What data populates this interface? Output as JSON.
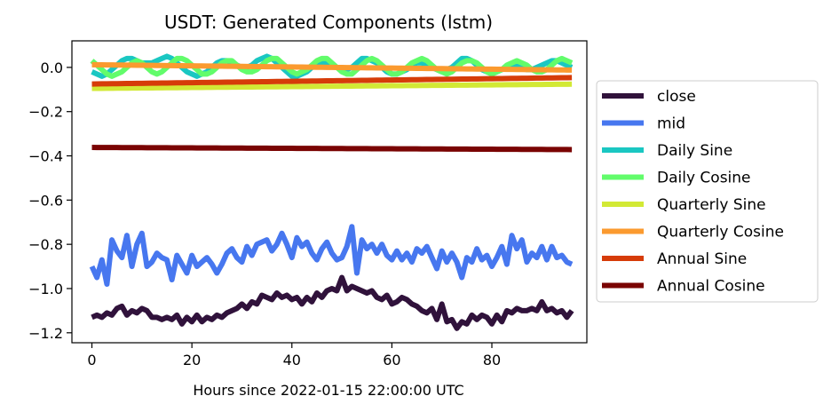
{
  "chart_data": {
    "type": "line",
    "title": "USDT: Generated Components (lstm)",
    "xlabel": "Hours since 2022-01-15 22:00:00 UTC",
    "ylabel": "",
    "xlim": [
      -4,
      99
    ],
    "ylim": [
      -1.245,
      0.12
    ],
    "xticks": [
      0,
      20,
      40,
      60,
      80
    ],
    "yticks": [
      0.0,
      -0.2,
      -0.4,
      -0.6,
      -0.8,
      -1.0,
      -1.2
    ],
    "ytick_labels": [
      "0.0",
      "−0.2",
      "−0.4",
      "−0.6",
      "−0.8",
      "−1.0",
      "−1.2"
    ],
    "grid": false,
    "legend_position": "right",
    "series": [
      {
        "name": "close",
        "color": "#30123b",
        "values": [
          -1.13,
          -1.12,
          -1.13,
          -1.11,
          -1.12,
          -1.09,
          -1.08,
          -1.12,
          -1.1,
          -1.11,
          -1.09,
          -1.1,
          -1.13,
          -1.13,
          -1.14,
          -1.13,
          -1.14,
          -1.12,
          -1.16,
          -1.13,
          -1.15,
          -1.12,
          -1.15,
          -1.13,
          -1.14,
          -1.12,
          -1.13,
          -1.11,
          -1.1,
          -1.09,
          -1.07,
          -1.09,
          -1.06,
          -1.07,
          -1.03,
          -1.04,
          -1.05,
          -1.02,
          -1.04,
          -1.03,
          -1.05,
          -1.04,
          -1.07,
          -1.04,
          -1.06,
          -1.02,
          -1.04,
          -1.01,
          -1.0,
          -1.01,
          -0.95,
          -1.01,
          -0.99,
          -1.0,
          -1.01,
          -1.02,
          -1.01,
          -1.04,
          -1.05,
          -1.03,
          -1.07,
          -1.06,
          -1.04,
          -1.05,
          -1.07,
          -1.08,
          -1.1,
          -1.11,
          -1.09,
          -1.14,
          -1.07,
          -1.15,
          -1.14,
          -1.18,
          -1.15,
          -1.16,
          -1.12,
          -1.14,
          -1.12,
          -1.13,
          -1.16,
          -1.12,
          -1.15,
          -1.1,
          -1.11,
          -1.09,
          -1.1,
          -1.1,
          -1.09,
          -1.1,
          -1.06,
          -1.1,
          -1.09,
          -1.11,
          -1.1,
          -1.13,
          -1.1
        ]
      },
      {
        "name": "mid",
        "color": "#4777ef",
        "values": [
          -0.9,
          -0.95,
          -0.87,
          -0.98,
          -0.78,
          -0.83,
          -0.86,
          -0.76,
          -0.9,
          -0.8,
          -0.75,
          -0.9,
          -0.88,
          -0.84,
          -0.86,
          -0.87,
          -0.96,
          -0.85,
          -0.89,
          -0.93,
          -0.85,
          -0.9,
          -0.88,
          -0.86,
          -0.89,
          -0.93,
          -0.89,
          -0.84,
          -0.82,
          -0.86,
          -0.88,
          -0.81,
          -0.85,
          -0.8,
          -0.79,
          -0.78,
          -0.83,
          -0.8,
          -0.75,
          -0.8,
          -0.86,
          -0.77,
          -0.81,
          -0.79,
          -0.84,
          -0.87,
          -0.82,
          -0.79,
          -0.84,
          -0.87,
          -0.86,
          -0.81,
          -0.72,
          -0.93,
          -0.78,
          -0.82,
          -0.8,
          -0.84,
          -0.8,
          -0.85,
          -0.87,
          -0.83,
          -0.87,
          -0.84,
          -0.88,
          -0.82,
          -0.84,
          -0.81,
          -0.86,
          -0.91,
          -0.83,
          -0.88,
          -0.84,
          -0.88,
          -0.95,
          -0.86,
          -0.88,
          -0.82,
          -0.87,
          -0.85,
          -0.9,
          -0.86,
          -0.81,
          -0.89,
          -0.76,
          -0.82,
          -0.78,
          -0.88,
          -0.84,
          -0.86,
          -0.81,
          -0.87,
          -0.81,
          -0.86,
          -0.85,
          -0.88,
          -0.89
        ]
      },
      {
        "name": "Daily Sine",
        "color": "#1ac7c2",
        "values": [
          -0.02,
          -0.03,
          -0.04,
          -0.03,
          -0.01,
          0.01,
          0.03,
          0.04,
          0.04,
          0.03,
          0.02,
          0.02,
          0.02,
          0.03,
          0.04,
          0.05,
          0.04,
          0.02,
          0.0,
          -0.02,
          -0.03,
          -0.04,
          -0.03,
          -0.02,
          0.0,
          0.02,
          0.03,
          0.03,
          0.02,
          0.01,
          0.0,
          0.0,
          0.01,
          0.03,
          0.04,
          0.05,
          0.04,
          0.02,
          0.0,
          -0.02,
          -0.04,
          -0.04,
          -0.03,
          -0.02,
          0.0,
          0.02,
          0.02,
          0.02,
          0.01,
          0.0,
          -0.01,
          -0.01,
          0.0,
          0.02,
          0.04,
          0.04,
          0.03,
          0.02,
          0.0,
          -0.02,
          -0.03,
          -0.03,
          -0.02,
          -0.01,
          0.01,
          0.02,
          0.02,
          0.01,
          0.0,
          -0.01,
          -0.02,
          -0.01,
          0.0,
          0.02,
          0.04,
          0.04,
          0.03,
          0.01,
          -0.01,
          -0.02,
          -0.03,
          -0.02,
          -0.01,
          0.0,
          0.01,
          0.01,
          0.0,
          -0.01,
          -0.01,
          0.0,
          0.01,
          0.02,
          0.03,
          0.03,
          0.02,
          0.01,
          0.0
        ]
      },
      {
        "name": "Daily Cosine",
        "color": "#62fc6b",
        "values": [
          0.03,
          0.01,
          -0.01,
          -0.03,
          -0.04,
          -0.03,
          -0.02,
          0.0,
          0.02,
          0.03,
          0.02,
          0.0,
          -0.02,
          -0.03,
          -0.02,
          0.0,
          0.02,
          0.04,
          0.04,
          0.03,
          0.01,
          -0.01,
          -0.03,
          -0.03,
          -0.02,
          0.0,
          0.02,
          0.03,
          0.03,
          0.01,
          -0.01,
          -0.02,
          -0.02,
          -0.01,
          0.01,
          0.03,
          0.04,
          0.04,
          0.02,
          0.0,
          -0.02,
          -0.03,
          -0.02,
          -0.01,
          0.01,
          0.03,
          0.04,
          0.04,
          0.02,
          0.0,
          -0.02,
          -0.03,
          -0.03,
          -0.01,
          0.01,
          0.03,
          0.04,
          0.03,
          0.01,
          -0.01,
          -0.03,
          -0.03,
          -0.02,
          0.0,
          0.02,
          0.03,
          0.04,
          0.03,
          0.01,
          -0.01,
          -0.02,
          -0.03,
          -0.02,
          0.0,
          0.02,
          0.03,
          0.03,
          0.02,
          0.0,
          -0.02,
          -0.03,
          -0.02,
          -0.01,
          0.01,
          0.02,
          0.03,
          0.02,
          0.01,
          -0.01,
          -0.02,
          -0.02,
          -0.01,
          0.01,
          0.03,
          0.04,
          0.03,
          0.02
        ]
      },
      {
        "name": "Quarterly Sine",
        "color": "#d2e935",
        "values": [
          -0.095,
          -0.0948,
          -0.0946,
          -0.0944,
          -0.0942,
          -0.094,
          -0.0938,
          -0.0936,
          -0.0934,
          -0.0932,
          -0.093,
          -0.0928,
          -0.0926,
          -0.0924,
          -0.0922,
          -0.092,
          -0.0918,
          -0.0916,
          -0.0914,
          -0.0912,
          -0.091,
          -0.0908,
          -0.0906,
          -0.0904,
          -0.0902,
          -0.09,
          -0.0898,
          -0.0896,
          -0.0894,
          -0.0892,
          -0.089,
          -0.0888,
          -0.0886,
          -0.0884,
          -0.0882,
          -0.088,
          -0.0878,
          -0.0876,
          -0.0874,
          -0.0872,
          -0.087,
          -0.0868,
          -0.0866,
          -0.0864,
          -0.0862,
          -0.086,
          -0.0858,
          -0.0856,
          -0.0854,
          -0.0852,
          -0.085,
          -0.0848,
          -0.0846,
          -0.0844,
          -0.0842,
          -0.084,
          -0.0838,
          -0.0836,
          -0.0834,
          -0.0832,
          -0.083,
          -0.0828,
          -0.0826,
          -0.0824,
          -0.0822,
          -0.082,
          -0.0818,
          -0.0816,
          -0.0814,
          -0.0812,
          -0.081,
          -0.0808,
          -0.0806,
          -0.0804,
          -0.0802,
          -0.08,
          -0.0798,
          -0.0796,
          -0.0794,
          -0.0792,
          -0.079,
          -0.0788,
          -0.0786,
          -0.0784,
          -0.0782,
          -0.078,
          -0.0778,
          -0.0776,
          -0.0774,
          -0.0772,
          -0.077,
          -0.0768,
          -0.0766,
          -0.0764,
          -0.0762,
          -0.076,
          -0.0758
        ]
      },
      {
        "name": "Quarterly Cosine",
        "color": "#fb9a2f",
        "values": [
          0.012,
          0.0118,
          0.0115,
          0.0113,
          0.011,
          0.0108,
          0.0105,
          0.0103,
          0.01,
          0.0098,
          0.0095,
          0.0093,
          0.009,
          0.0088,
          0.0085,
          0.0083,
          0.008,
          0.0078,
          0.0075,
          0.0073,
          0.007,
          0.0068,
          0.0065,
          0.0063,
          0.006,
          0.0058,
          0.0055,
          0.0053,
          0.005,
          0.0048,
          0.0045,
          0.0043,
          0.004,
          0.0038,
          0.0035,
          0.0033,
          0.003,
          0.0028,
          0.0025,
          0.0023,
          0.002,
          0.0018,
          0.0015,
          0.0013,
          0.001,
          0.0008,
          0.0005,
          0.0003,
          0.0,
          -0.0003,
          -0.0005,
          -0.0008,
          -0.001,
          -0.0013,
          -0.0015,
          -0.0018,
          -0.002,
          -0.0023,
          -0.0025,
          -0.0028,
          -0.003,
          -0.0033,
          -0.0035,
          -0.0038,
          -0.004,
          -0.0043,
          -0.0045,
          -0.0048,
          -0.005,
          -0.0053,
          -0.0055,
          -0.0058,
          -0.006,
          -0.0063,
          -0.0065,
          -0.0068,
          -0.007,
          -0.0073,
          -0.0075,
          -0.0078,
          -0.008,
          -0.0083,
          -0.0085,
          -0.0088,
          -0.009,
          -0.0093,
          -0.0095,
          -0.0098,
          -0.01,
          -0.0103,
          -0.0105,
          -0.0108,
          -0.011,
          -0.0113,
          -0.0115,
          -0.0118,
          -0.012
        ]
      },
      {
        "name": "Annual Sine",
        "color": "#d63c09",
        "values": [
          -0.075,
          -0.0747,
          -0.0744,
          -0.0741,
          -0.0738,
          -0.0735,
          -0.0732,
          -0.0729,
          -0.0726,
          -0.0723,
          -0.072,
          -0.0717,
          -0.0714,
          -0.0711,
          -0.0708,
          -0.0705,
          -0.0702,
          -0.0699,
          -0.0696,
          -0.0693,
          -0.069,
          -0.0687,
          -0.0684,
          -0.0681,
          -0.0678,
          -0.0675,
          -0.0672,
          -0.0669,
          -0.0666,
          -0.0663,
          -0.066,
          -0.0657,
          -0.0654,
          -0.0651,
          -0.0648,
          -0.0645,
          -0.0642,
          -0.0639,
          -0.0636,
          -0.0633,
          -0.063,
          -0.0627,
          -0.0624,
          -0.0621,
          -0.0618,
          -0.0615,
          -0.0612,
          -0.0609,
          -0.0606,
          -0.0603,
          -0.06,
          -0.0597,
          -0.0594,
          -0.0591,
          -0.0588,
          -0.0585,
          -0.0582,
          -0.0579,
          -0.0576,
          -0.0573,
          -0.057,
          -0.0567,
          -0.0564,
          -0.0561,
          -0.0558,
          -0.0555,
          -0.0552,
          -0.0549,
          -0.0546,
          -0.0543,
          -0.054,
          -0.0537,
          -0.0534,
          -0.0531,
          -0.0528,
          -0.0525,
          -0.0522,
          -0.0519,
          -0.0516,
          -0.0513,
          -0.051,
          -0.0507,
          -0.0504,
          -0.0501,
          -0.0498,
          -0.0495,
          -0.0492,
          -0.0489,
          -0.0486,
          -0.0483,
          -0.048,
          -0.0477,
          -0.0474,
          -0.0471,
          -0.0468,
          -0.0465,
          -0.0462
        ]
      },
      {
        "name": "Annual Cosine",
        "color": "#7a0403",
        "values": [
          -0.362,
          -0.3621,
          -0.3622,
          -0.3623,
          -0.3624,
          -0.3625,
          -0.3626,
          -0.3627,
          -0.3628,
          -0.3629,
          -0.363,
          -0.3631,
          -0.3632,
          -0.3633,
          -0.3634,
          -0.3635,
          -0.3636,
          -0.3637,
          -0.3638,
          -0.3639,
          -0.364,
          -0.3641,
          -0.3642,
          -0.3643,
          -0.3644,
          -0.3645,
          -0.3646,
          -0.3647,
          -0.3648,
          -0.3649,
          -0.365,
          -0.3651,
          -0.3652,
          -0.3653,
          -0.3654,
          -0.3655,
          -0.3656,
          -0.3657,
          -0.3658,
          -0.3659,
          -0.366,
          -0.3661,
          -0.3662,
          -0.3663,
          -0.3664,
          -0.3665,
          -0.3666,
          -0.3667,
          -0.3668,
          -0.3669,
          -0.367,
          -0.3671,
          -0.3672,
          -0.3673,
          -0.3674,
          -0.3675,
          -0.3676,
          -0.3677,
          -0.3678,
          -0.3679,
          -0.368,
          -0.3681,
          -0.3682,
          -0.3683,
          -0.3684,
          -0.3685,
          -0.3686,
          -0.3687,
          -0.3688,
          -0.3689,
          -0.369,
          -0.3691,
          -0.3692,
          -0.3693,
          -0.3694,
          -0.3695,
          -0.3696,
          -0.3697,
          -0.3698,
          -0.3699,
          -0.37,
          -0.3701,
          -0.3702,
          -0.3703,
          -0.3704,
          -0.3705,
          -0.3706,
          -0.3707,
          -0.3708,
          -0.3709,
          -0.371,
          -0.3711,
          -0.3712,
          -0.3713,
          -0.3714,
          -0.3715,
          -0.3716
        ]
      }
    ]
  }
}
